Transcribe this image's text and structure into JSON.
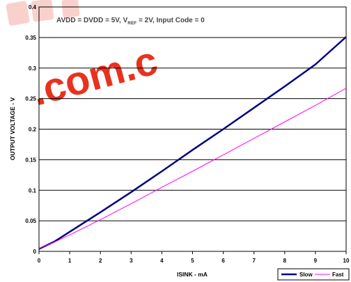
{
  "chart_data": {
    "type": "line",
    "title": "",
    "annotation": {
      "prefix": "AVDD = DVDD = 5V, V",
      "subscript": "REF",
      "suffix": " = 2V, Input Code = 0"
    },
    "xlabel": "ISINK - mA",
    "ylabel": "OUTPUT VOLTAGE - V",
    "xlim": [
      0,
      10
    ],
    "ylim": [
      0,
      0.4
    ],
    "xticks": [
      "0",
      "1",
      "2",
      "3",
      "4",
      "5",
      "6",
      "7",
      "8",
      "9",
      "10"
    ],
    "yticks": [
      "0",
      "0.05",
      "0.1",
      "0.15",
      "0.2",
      "0.25",
      "0.3",
      "0.35",
      "0.4"
    ],
    "xtick_values": [
      0,
      1,
      2,
      3,
      4,
      5,
      6,
      7,
      8,
      9,
      10
    ],
    "ytick_values": [
      0,
      0.05,
      0.1,
      0.15,
      0.2,
      0.25,
      0.3,
      0.35,
      0.4
    ],
    "grid": "horizontal",
    "legend_position": "bottom-right",
    "series": [
      {
        "name": "Slow",
        "color": "#00007f",
        "x": [
          0,
          0.5,
          1,
          2,
          3,
          4,
          5,
          6,
          7,
          8,
          9,
          10
        ],
        "values": [
          0.004,
          0.016,
          0.032,
          0.064,
          0.097,
          0.131,
          0.166,
          0.2,
          0.235,
          0.27,
          0.306,
          0.351
        ]
      },
      {
        "name": "Fast",
        "color": "#ff00ff",
        "x": [
          0,
          0.5,
          1,
          2,
          3,
          4,
          5,
          6,
          7,
          8,
          9,
          10
        ],
        "values": [
          0.005,
          0.015,
          0.027,
          0.052,
          0.078,
          0.105,
          0.131,
          0.158,
          0.185,
          0.212,
          0.239,
          0.267
        ]
      }
    ]
  },
  "watermark": {
    "text": ".com.c",
    "color": "#e8321e"
  }
}
